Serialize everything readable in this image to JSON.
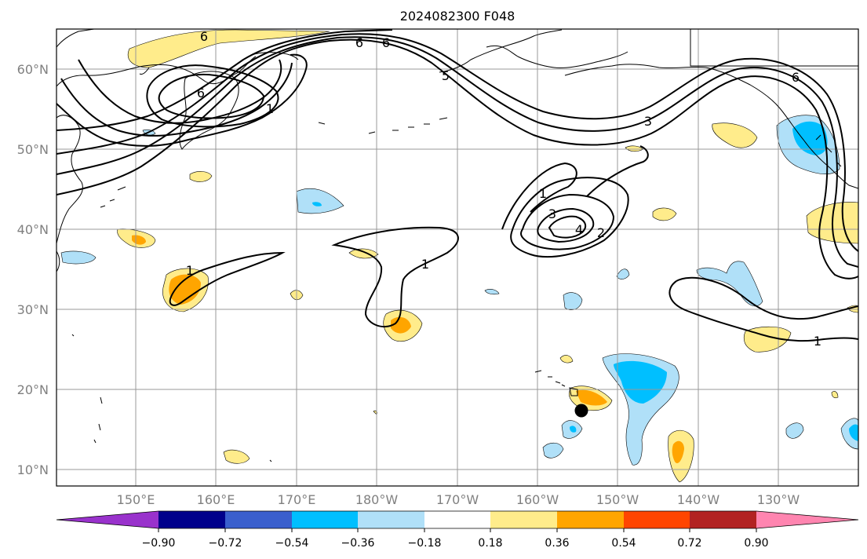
{
  "title": "2024082300 F048",
  "lat_labels": [
    "60°N",
    "50°N",
    "40°N",
    "30°N",
    "20°N",
    "10°N"
  ],
  "lon_labels": [
    "150°E",
    "160°E",
    "170°E",
    "180°W",
    "170°W",
    "160°W",
    "150°W",
    "140°W",
    "130°W"
  ],
  "colorbar": {
    "ticks": [
      "−0.90",
      "−0.72",
      "−0.54",
      "−0.36",
      "−0.18",
      "0.18",
      "0.36",
      "0.54",
      "0.72",
      "0.90"
    ],
    "colors": [
      "#9932cc",
      "#00008b",
      "#3a5fcd",
      "#00bfff",
      "#b0e0f8",
      "#ffffff",
      "#ffec8b",
      "#ffa500",
      "#ff4500",
      "#b22222",
      "#ff85b0"
    ]
  },
  "contour_labels": [
    "6",
    "6",
    "6",
    "6",
    "1",
    "5",
    "3",
    "6",
    "1",
    "3",
    "4",
    "2",
    "1",
    "1",
    "1"
  ],
  "marker": "storm-center-dot"
}
